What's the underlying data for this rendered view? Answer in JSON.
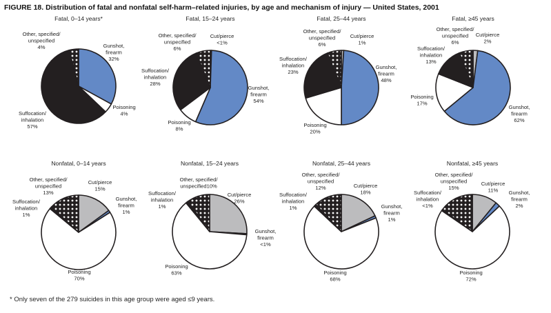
{
  "chart_data": {
    "type": "pie",
    "title": "FIGURE 18. Distribution of fatal and nonfatal self-harm–related injuries, by age and mechanism of injury — United States, 2001",
    "footnote": "* Only seven of the 279 suicides in this age group were aged ≤9 years.",
    "colors": {
      "Cut/pierce": "#bcbcbe",
      "Gunshot, firearm": "#6389c6",
      "Poisoning": "#ffffff",
      "Suffocation/inhalation": "#231f20",
      "Other, specified/unspecified": "hatched"
    },
    "slice_order": "clockwise from 12 o'clock",
    "pies": [
      {
        "title": "Fatal, 0–14 years*",
        "slices": [
          {
            "name": "Gunshot, firearm",
            "value": 32,
            "label": [
              "Gunshot,",
              "firearm",
              "32%"
            ]
          },
          {
            "name": "Poisoning",
            "value": 4,
            "label": [
              "Poisoning",
              "4%"
            ]
          },
          {
            "name": "Suffocation/inhalation",
            "value": 57,
            "label": [
              "Suffocation/",
              "inhalation",
              "57%"
            ]
          },
          {
            "name": "Other, specified/unspecified",
            "value": 4,
            "label": [
              "Other, specified/",
              "unspecified",
              "4%"
            ]
          }
        ]
      },
      {
        "title": "Fatal, 15–24 years",
        "slices": [
          {
            "name": "Cut/pierce",
            "value": "<1",
            "label": [
              "Cut/pierce",
              "<1%"
            ]
          },
          {
            "name": "Gunshot, firearm",
            "value": 54,
            "label": [
              "Gunshot,",
              "firearm",
              "54%"
            ]
          },
          {
            "name": "Poisoning",
            "value": 8,
            "label": [
              "Poisoning",
              "8%"
            ]
          },
          {
            "name": "Suffocation/inhalation",
            "value": 28,
            "label": [
              "Suffocation/",
              "inhalation",
              "28%"
            ]
          },
          {
            "name": "Other, specified/unspecified",
            "value": 6,
            "label": [
              "Other, specified/",
              "unspecified",
              "6%"
            ]
          }
        ]
      },
      {
        "title": "Fatal, 25–44 years",
        "slices": [
          {
            "name": "Cut/pierce",
            "value": 1,
            "label": [
              "Cut/pierce",
              "1%"
            ]
          },
          {
            "name": "Gunshot, firearm",
            "value": 48,
            "label": [
              "Gunshot,",
              "firearm",
              "48%"
            ]
          },
          {
            "name": "Poisoning",
            "value": 20,
            "label": [
              "Poisoning",
              "20%"
            ]
          },
          {
            "name": "Suffocation/inhalation",
            "value": 23,
            "label": [
              "Suffocation/",
              "inhalation",
              "23%"
            ]
          },
          {
            "name": "Other, specified/unspecified",
            "value": 6,
            "label": [
              "Other, specified/",
              "unspecified",
              "6%"
            ]
          }
        ]
      },
      {
        "title": "Fatal, ≥45 years",
        "slices": [
          {
            "name": "Cut/pierce",
            "value": 2,
            "label": [
              "Cut/pierce",
              "2%"
            ]
          },
          {
            "name": "Gunshot, firearm",
            "value": 62,
            "label": [
              "Gunshot,",
              "firearm",
              "62%"
            ]
          },
          {
            "name": "Poisoning",
            "value": 17,
            "label": [
              "Poisoning",
              "17%"
            ]
          },
          {
            "name": "Suffocation/inhalation",
            "value": 13,
            "label": [
              "Suffocation/",
              "inhalation",
              "13%"
            ]
          },
          {
            "name": "Other, specified/unspecified",
            "value": 6,
            "label": [
              "Other, specified/",
              "unspecified",
              "6%"
            ]
          }
        ]
      },
      {
        "title": "Nonfatal, 0–14 years",
        "slices": [
          {
            "name": "Cut/pierce",
            "value": 15,
            "label": [
              "Cut/pierce",
              "15%"
            ]
          },
          {
            "name": "Gunshot, firearm",
            "value": 1,
            "label": [
              "Gunshot,",
              "firearm",
              "1%"
            ]
          },
          {
            "name": "Poisoning",
            "value": 70,
            "label": [
              "Poisoning",
              "70%"
            ]
          },
          {
            "name": "Suffocation/inhalation",
            "value": 1,
            "label": [
              "Suffocation/",
              "inhalation",
              "1%"
            ]
          },
          {
            "name": "Other, specified/unspecified",
            "value": 13,
            "label": [
              "Other, specified/",
              "unspecified",
              "13%"
            ]
          }
        ]
      },
      {
        "title": "Nonfatal, 15–24 years",
        "slices": [
          {
            "name": "Cut/pierce",
            "value": 26,
            "label": [
              "Cut/pierce",
              "26%"
            ]
          },
          {
            "name": "Gunshot, firearm",
            "value": "<1",
            "label": [
              "Gunshot,",
              "firearm",
              "<1%"
            ]
          },
          {
            "name": "Poisoning",
            "value": 63,
            "label": [
              "Poisoning",
              "63%"
            ]
          },
          {
            "name": "Suffocation/inhalation",
            "value": 1,
            "label": [
              "Suffocation/",
              "inhalation",
              "1%"
            ]
          },
          {
            "name": "Other, specified/unspecified",
            "value": 10,
            "label": [
              "Other, specified/",
              "unspecified10%"
            ]
          }
        ]
      },
      {
        "title": "Nonfatal, 25–44 years",
        "slices": [
          {
            "name": "Cut/pierce",
            "value": 18,
            "label": [
              "Cut/pierce",
              "18%"
            ]
          },
          {
            "name": "Gunshot, firearm",
            "value": 1,
            "label": [
              "Gunshot,",
              "firearm",
              "1%"
            ]
          },
          {
            "name": "Poisoning",
            "value": 68,
            "label": [
              "Poisoning",
              "68%"
            ]
          },
          {
            "name": "Suffocation/inhalation",
            "value": 1,
            "label": [
              "Suffocation/",
              "inhalation",
              "1%"
            ]
          },
          {
            "name": "Other, specified/unspecified",
            "value": 12,
            "label": [
              "Other, specified/",
              "unspecified",
              "12%"
            ]
          }
        ]
      },
      {
        "title": "Nonfatal, ≥45 years",
        "slices": [
          {
            "name": "Cut/pierce",
            "value": 11,
            "label": [
              "Cut/pierce",
              "11%"
            ]
          },
          {
            "name": "Gunshot, firearm",
            "value": 2,
            "label": [
              "Gunshot,",
              "firearm",
              "2%"
            ]
          },
          {
            "name": "Poisoning",
            "value": 72,
            "label": [
              "Poisoning",
              "72%"
            ]
          },
          {
            "name": "Suffocation/inhalation",
            "value": "<1",
            "label": [
              "Suffocation/",
              "inhalation",
              "<1%"
            ]
          },
          {
            "name": "Other, specified/unspecified",
            "value": 15,
            "label": [
              "Other, specified/",
              "unspecified",
              "15%"
            ]
          }
        ]
      }
    ]
  }
}
